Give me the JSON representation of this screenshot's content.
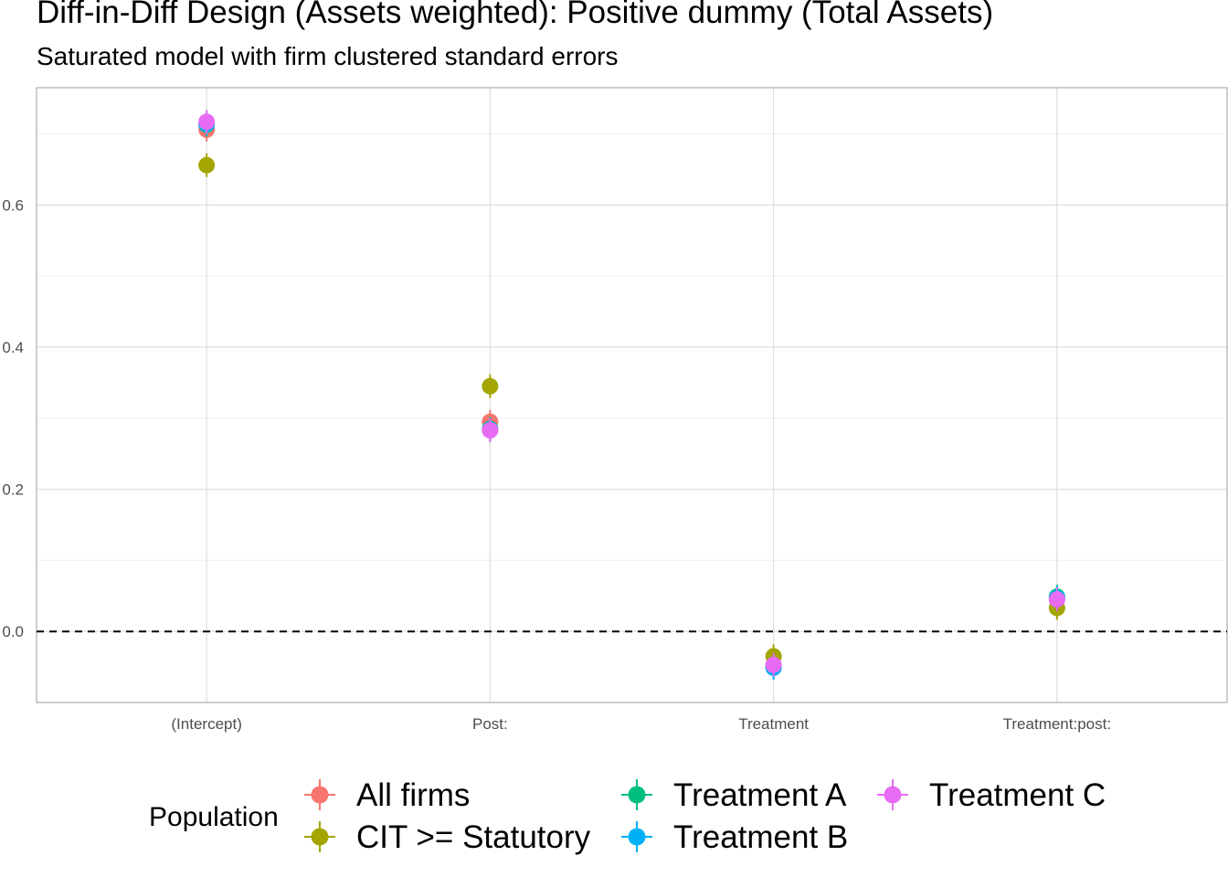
{
  "chart_data": {
    "type": "scatter",
    "title": "Diff-in-Diff Design (Assets weighted): Positive dummy (Total Assets)",
    "subtitle": "Saturated model with firm clustered standard errors",
    "xlabel": "",
    "ylabel": "",
    "categories": [
      "(Intercept)",
      "Post:",
      "Treatment",
      "Treatment:post:"
    ],
    "y_ticks": [
      0.0,
      0.2,
      0.4,
      0.6
    ],
    "y_tick_labels": [
      "0.0",
      "0.2",
      "0.4",
      "0.6"
    ],
    "ylim": [
      -0.1,
      0.765
    ],
    "grid": true,
    "reference_line": {
      "y": 0,
      "style": "dashed"
    },
    "legend": {
      "title": "Population",
      "position": "bottom"
    },
    "series": [
      {
        "name": "All firms",
        "color": "#F8766D",
        "values": [
          0.706,
          0.295,
          -0.048,
          0.046
        ]
      },
      {
        "name": "CIT >= Statutory",
        "color": "#A3A500",
        "values": [
          0.656,
          0.345,
          -0.035,
          0.033
        ]
      },
      {
        "name": "Treatment A",
        "color": "#00BF7D",
        "values": [
          0.713,
          0.285,
          -0.05,
          0.049
        ]
      },
      {
        "name": "Treatment B",
        "color": "#00B0F6",
        "values": [
          0.714,
          0.284,
          -0.051,
          0.047
        ]
      },
      {
        "name": "Treatment C",
        "color": "#E76BF3",
        "values": [
          0.717,
          0.283,
          -0.047,
          0.045
        ]
      }
    ]
  }
}
